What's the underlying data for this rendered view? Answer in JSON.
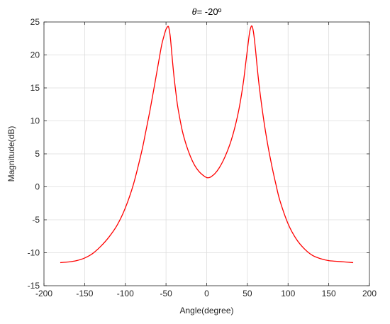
{
  "chart_data": {
    "type": "line",
    "title": {
      "symbol": "θ",
      "text": "= -20º"
    },
    "xlabel": "Angle(degree)",
    "ylabel": "Magnitude(dB)",
    "xlim": [
      -200,
      200
    ],
    "ylim": [
      -15,
      25
    ],
    "xticks": [
      -200,
      -150,
      -100,
      -50,
      0,
      50,
      100,
      150,
      200
    ],
    "yticks": [
      -15,
      -10,
      -5,
      0,
      5,
      10,
      15,
      20,
      25
    ],
    "xtick_labels": [
      "-200",
      "-150",
      "-100",
      "-50",
      "0",
      "50",
      "100",
      "150",
      "200"
    ],
    "ytick_labels": [
      "-15",
      "-10",
      "-5",
      "0",
      "5",
      "10",
      "15",
      "20",
      "25"
    ],
    "grid": true,
    "series": [
      {
        "color": "#ff0000",
        "x": [
          -180,
          -170,
          -160,
          -150,
          -140,
          -130,
          -120,
          -110,
          -100,
          -90,
          -80,
          -75,
          -70,
          -65,
          -60,
          -57,
          -55,
          -52,
          -50,
          -48,
          -47,
          -46,
          -45,
          -44,
          -42,
          -40,
          -37,
          -35,
          -30,
          -25,
          -20,
          -15,
          -10,
          -5,
          0,
          3,
          5,
          10,
          15,
          20,
          25,
          30,
          35,
          40,
          45,
          48,
          50,
          52,
          53,
          54,
          55,
          56,
          57,
          58,
          60,
          62,
          65,
          70,
          75,
          80,
          85,
          90,
          100,
          110,
          120,
          130,
          140,
          150,
          160,
          170,
          180
        ],
        "y": [
          -11.5,
          -11.4,
          -11.2,
          -10.8,
          -10.1,
          -9.0,
          -7.6,
          -5.8,
          -3.2,
          0.4,
          5.3,
          8.3,
          11.4,
          14.8,
          18.3,
          20.4,
          21.7,
          23.1,
          23.9,
          24.3,
          24.3,
          23.8,
          23.0,
          21.8,
          19.0,
          16.5,
          13.4,
          11.7,
          8.5,
          6.3,
          4.6,
          3.3,
          2.4,
          1.8,
          1.4,
          1.4,
          1.5,
          2.0,
          2.8,
          3.9,
          5.3,
          7.0,
          9.2,
          12.0,
          15.8,
          18.8,
          20.8,
          22.8,
          23.6,
          24.1,
          24.4,
          24.3,
          23.8,
          23.0,
          20.8,
          18.2,
          14.8,
          10.2,
          6.4,
          3.2,
          0.4,
          -2.1,
          -5.6,
          -7.9,
          -9.4,
          -10.4,
          -10.9,
          -11.2,
          -11.3,
          -11.4,
          -11.5
        ]
      }
    ]
  }
}
